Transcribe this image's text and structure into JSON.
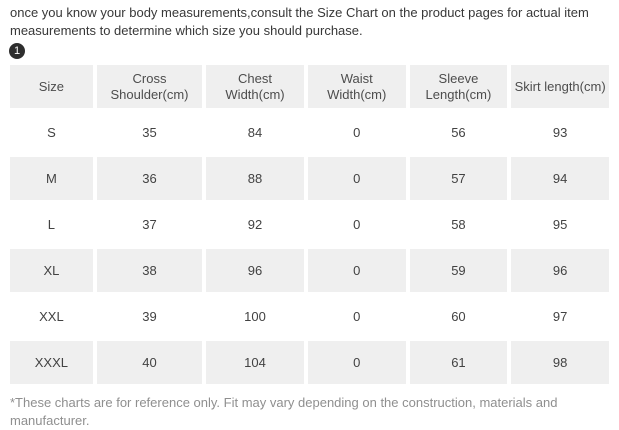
{
  "intro": {
    "text": "once you know your body measurements,consult the Size Chart on the product pages for actual item measurements to determine which size you should purchase."
  },
  "badge": {
    "label": "1"
  },
  "size_chart": {
    "columns": [
      "Size",
      "Cross Shoulder(cm)",
      "Chest Width(cm)",
      "Waist Width(cm)",
      "Sleeve Length(cm)",
      "Skirt length(cm)"
    ],
    "rows": [
      [
        "S",
        "35",
        "84",
        "0",
        "56",
        "93"
      ],
      [
        "M",
        "36",
        "88",
        "0",
        "57",
        "94"
      ],
      [
        "L",
        "37",
        "92",
        "0",
        "58",
        "95"
      ],
      [
        "XL",
        "38",
        "96",
        "0",
        "59",
        "96"
      ],
      [
        "XXL",
        "39",
        "100",
        "0",
        "60",
        "97"
      ],
      [
        "XXXL",
        "40",
        "104",
        "0",
        "61",
        "98"
      ]
    ]
  },
  "footnote": {
    "text": "*These charts are for reference only. Fit may vary depending on the construction, materials and manufacturer."
  },
  "colors": {
    "row_alt": "#efefef",
    "text": "#3f3f3f",
    "footnote_text": "#8f8f8f",
    "badge_bg": "#2e2e2e",
    "page_bg": "#ffffff"
  }
}
